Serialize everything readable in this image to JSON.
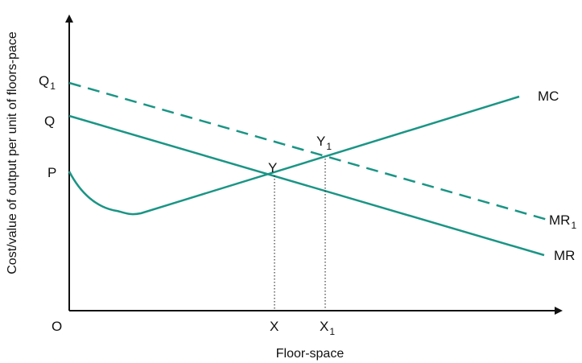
{
  "diagram": {
    "y_axis_label": "Cost/value of output per unit of floors-pace",
    "x_axis_label": "Floor-space",
    "origin_label": "O",
    "y_ticks": [
      {
        "id": "q1",
        "main": "Q",
        "sub": "1"
      },
      {
        "id": "q",
        "main": "Q",
        "sub": ""
      },
      {
        "id": "p",
        "main": "P",
        "sub": ""
      }
    ],
    "x_ticks": [
      {
        "id": "x",
        "main": "X",
        "sub": ""
      },
      {
        "id": "x1",
        "main": "X",
        "sub": "1"
      }
    ],
    "curves": [
      {
        "id": "mc",
        "label": "MC",
        "sub": "",
        "style": "solid"
      },
      {
        "id": "mr1",
        "label": "MR",
        "sub": "1",
        "style": "dashed"
      },
      {
        "id": "mr",
        "label": "MR",
        "sub": "",
        "style": "solid"
      }
    ],
    "points": [
      {
        "id": "y",
        "main": "Y",
        "sub": ""
      },
      {
        "id": "y1",
        "main": "Y",
        "sub": "1"
      }
    ],
    "colors": {
      "curve": "#1a9585",
      "axis": "#111111",
      "guide": "#111111"
    }
  }
}
